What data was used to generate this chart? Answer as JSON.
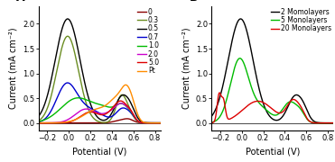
{
  "panel_A": {
    "xlabel": "Potential (V)",
    "ylabel": "Current (mA cm⁻²)",
    "label": "A",
    "xlim": [
      -0.28,
      0.85
    ],
    "ylim": [
      -0.15,
      2.35
    ],
    "xticks": [
      -0.2,
      0.0,
      0.2,
      0.4,
      0.6,
      0.8
    ],
    "yticks": [
      0.0,
      0.5,
      1.0,
      1.5,
      2.0
    ],
    "legend_labels": [
      "0",
      "0.3",
      "0.5",
      "0.7",
      "1.0",
      "2.0",
      "5.0",
      "Pt"
    ],
    "legend_colors": [
      "#8b0000",
      "#6b8e23",
      "#000000",
      "#0000cd",
      "#00bb00",
      "#cc00cc",
      "#dd0000",
      "#ff8c00"
    ]
  },
  "panel_B": {
    "xlabel": "Potential (V)",
    "ylabel": "Current (mA cm⁻²)",
    "label": "B",
    "xlim": [
      -0.28,
      0.85
    ],
    "ylim": [
      -0.15,
      2.35
    ],
    "xticks": [
      -0.2,
      0.0,
      0.2,
      0.4,
      0.6,
      0.8
    ],
    "yticks": [
      0.0,
      0.5,
      1.0,
      1.5,
      2.0
    ],
    "legend_labels": [
      "2 Momolayers",
      "5 Monolayers",
      "20 Monolayers"
    ],
    "legend_colors": [
      "#000000",
      "#00bb00",
      "#dd0000"
    ]
  },
  "background_color": "#ffffff",
  "fontsize": 7
}
